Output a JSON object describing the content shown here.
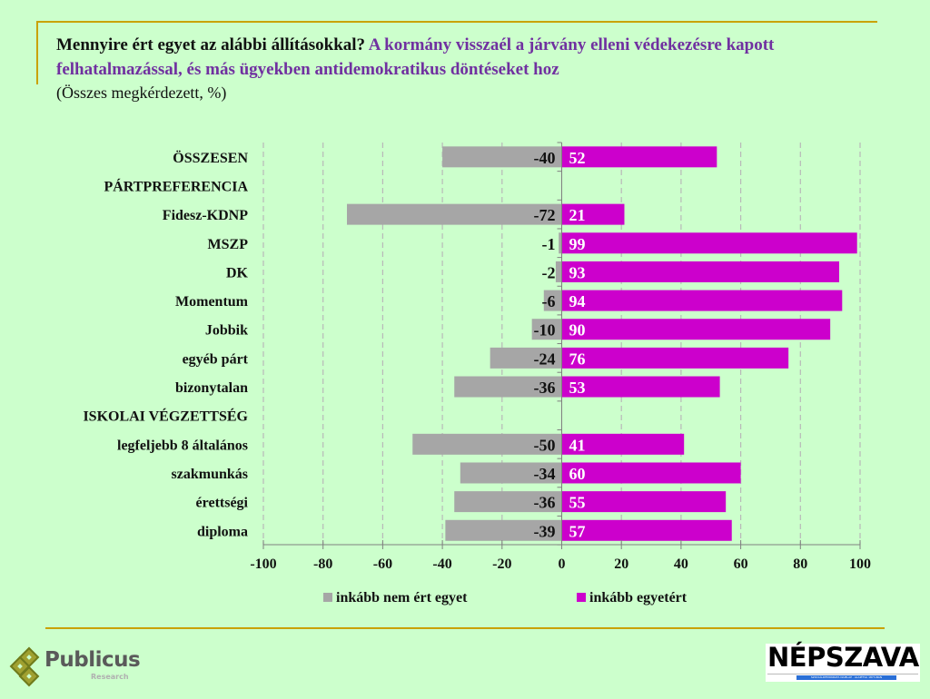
{
  "header": {
    "question": "Mennyire ért egyet az alábbi állításokkal?",
    "statement": "A kormány visszaél a járvány elleni védekezésre kapott felhatalmazással, és más ügyekben antidemokratikus döntéseket hoz",
    "subtitle": "(Összes megkérdezett, %)"
  },
  "colors": {
    "background": "#ccffcc",
    "frame": "#c9a200",
    "statement": "#7030a0",
    "disagree": "#a6a6a6",
    "agree": "#cc00cc"
  },
  "chart_data": {
    "type": "bar",
    "orientation": "horizontal-diverging",
    "title": "Mennyire ért egyet az alábbi állításokkal? A kormány visszaél a járvány elleni védekezésre kapott felhatalmazással, és más ügyekben antidemokratikus döntéseket hoz",
    "subtitle": "(Összes megkérdezett, %)",
    "xlabel": "",
    "ylabel": "",
    "xlim": [
      -100,
      100
    ],
    "xticks": [
      -100,
      -80,
      -60,
      -40,
      -20,
      0,
      20,
      40,
      60,
      80,
      100
    ],
    "grid": "vertical-dashed",
    "legend_position": "bottom",
    "categories": [
      "ÖSSZESEN",
      "PÁRTPREFERENCIA",
      "Fidesz-KDNP",
      "MSZP",
      "DK",
      "Momentum",
      "Jobbik",
      "egyéb párt",
      "bizonytalan",
      "ISKOLAI VÉGZETTSÉG",
      "legfeljebb 8 általános",
      "szakmunkás",
      "érettségi",
      "diploma"
    ],
    "series": [
      {
        "name": "inkább nem ért egyet",
        "color": "#a6a6a6",
        "values": [
          -40,
          null,
          -72,
          -1,
          -2,
          -6,
          -10,
          -24,
          -36,
          null,
          -50,
          -34,
          -36,
          -39
        ]
      },
      {
        "name": "inkább egyetért",
        "color": "#cc00cc",
        "values": [
          52,
          null,
          21,
          99,
          93,
          94,
          90,
          76,
          53,
          null,
          41,
          60,
          55,
          57
        ]
      }
    ]
  },
  "footer": {
    "publicus_brand": "Publicus",
    "publicus_sub": "Research",
    "nepszava_name": "NÉPSZAVA",
    "nepszava_tagline": "SZOCIÁLDEMOKRATA NAPILAP · ALAPÍTVA 1873-BAN"
  }
}
